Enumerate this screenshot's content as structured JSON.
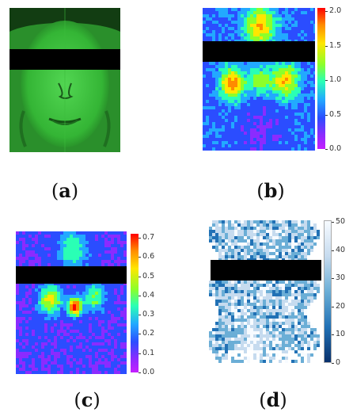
{
  "panels": [
    {
      "id": "a",
      "caption_open": "(",
      "caption_letter": "a",
      "caption_close": ")",
      "description": "green-tinted face photo with black redaction bar"
    },
    {
      "id": "b",
      "caption_open": "(",
      "caption_letter": "b",
      "caption_close": ")",
      "colorbar_ticks": [
        "2.0",
        "1.5",
        "1.0",
        "0.5",
        "0.0"
      ]
    },
    {
      "id": "c",
      "caption_open": "(",
      "caption_letter": "c",
      "caption_close": ")",
      "colorbar_ticks": [
        "0.7",
        "0.6",
        "0.5",
        "0.4",
        "0.3",
        "0.2",
        "0.1",
        "0.0"
      ]
    },
    {
      "id": "d",
      "caption_open": "(",
      "caption_letter": "d",
      "caption_close": ")",
      "colorbar_ticks": [
        "50",
        "40",
        "30",
        "20",
        "10",
        "0"
      ]
    }
  ],
  "colors": {
    "rainbow": [
      "#ff0000",
      "#ff8a00",
      "#ffe600",
      "#8cff2a",
      "#2affb5",
      "#22a9ff",
      "#2b4dff",
      "#8b2bff",
      "#c51fff"
    ],
    "blues": [
      "#f7fbff",
      "#c6dbef",
      "#6baed6",
      "#2171b5",
      "#08306b"
    ],
    "face_green": "#39c93a"
  }
}
